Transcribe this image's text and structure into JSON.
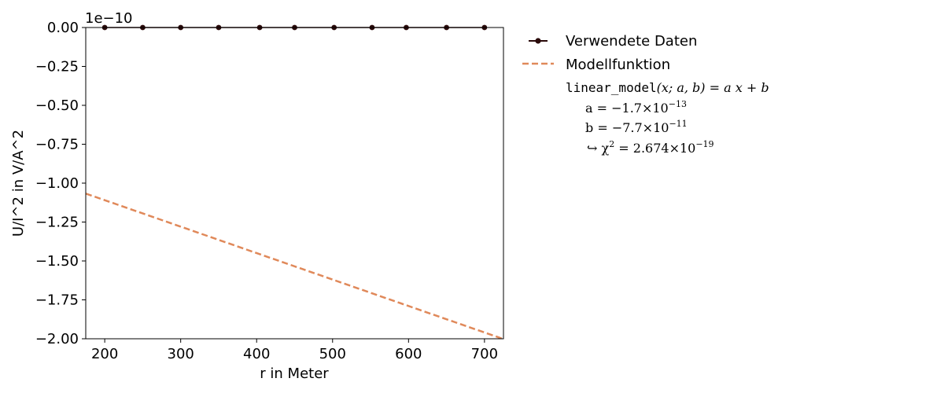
{
  "chart_data": {
    "type": "line",
    "xlabel": "r in Meter",
    "ylabel": "U/I^2 in V/A^2",
    "y_offset_label": "1e−10",
    "xlim": [
      175,
      725
    ],
    "ylim": [
      -2.0,
      0.0
    ],
    "y_scale_note": "values in units of 1e-10",
    "x_ticks": [
      200,
      300,
      400,
      500,
      600,
      700
    ],
    "x_tick_labels": [
      "200",
      "300",
      "400",
      "500",
      "600",
      "700"
    ],
    "y_ticks": [
      0.0,
      -0.25,
      -0.5,
      -0.75,
      -1.0,
      -1.25,
      -1.5,
      -1.75,
      -2.0
    ],
    "y_tick_labels": [
      "0.00",
      "−0.25",
      "−0.50",
      "−0.75",
      "−1.00",
      "−1.25",
      "−1.50",
      "−1.75",
      "−2.00"
    ],
    "series": [
      {
        "name": "Verwendete Daten",
        "style": "line-with-markers",
        "color": "#2a0a0a",
        "x": [
          200,
          250,
          300,
          350,
          404,
          450,
          502,
          552,
          597,
          650,
          700
        ],
        "y": [
          0,
          0,
          0,
          0,
          0,
          0,
          0,
          0,
          0,
          0,
          0
        ]
      },
      {
        "name": "Modellfunktion",
        "style": "dashed",
        "color": "#e0895a",
        "x": [
          175,
          725
        ],
        "y": [
          -1.067,
          -2.002
        ]
      }
    ],
    "legend": {
      "placement": "right-outside",
      "model_formula_fn": "linear_model",
      "model_formula_args": "(x; a, b) = a x + b",
      "param_a": "a = −1.7×10",
      "param_a_exp": "−13",
      "param_b": "b = −7.7×10",
      "param_b_exp": "−11",
      "chi_prefix": "↪ χ",
      "chi_sq": "2",
      "chi_value": " = 2.674×10",
      "chi_exp": "−19"
    },
    "grid": false
  }
}
